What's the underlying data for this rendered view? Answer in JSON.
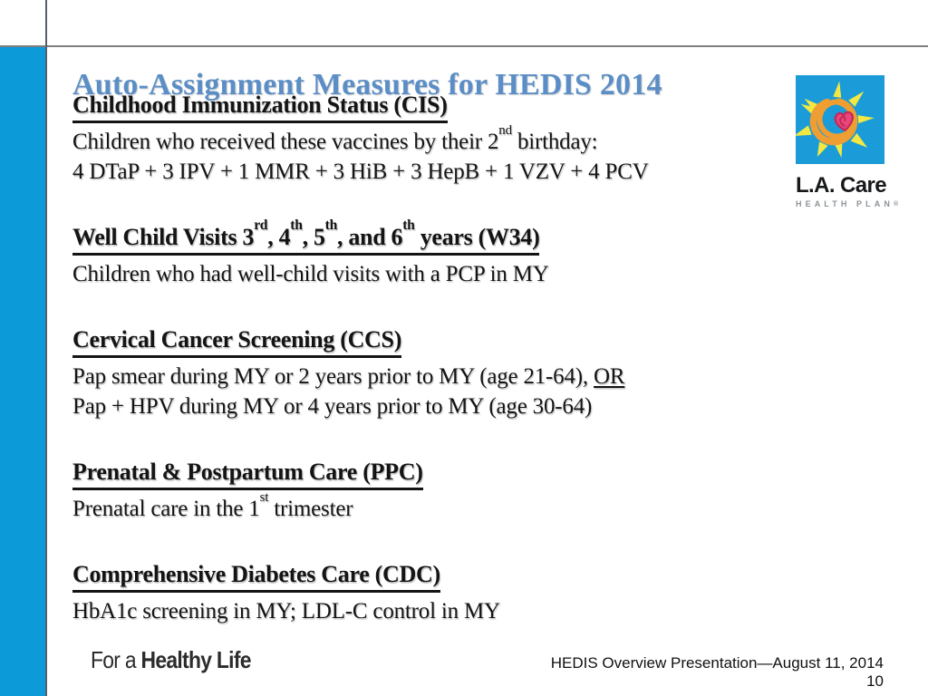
{
  "slide": {
    "title": "Auto-Assignment Measures for HEDIS 2014"
  },
  "colors": {
    "accent_bar": "#0d9ad9",
    "title_text": "#5b8ec6",
    "logo_square": "#1b9cd8",
    "logo_ring_orange": "#ef9e32",
    "logo_heart_pink": "#e8477a",
    "logo_ray_yellow": "#f3e842",
    "body_text": "#141414"
  },
  "sections": [
    {
      "id": "cis",
      "heading": [
        {
          "t": "Childhood Immunization Status (CIS)"
        }
      ],
      "lines": [
        [
          {
            "t": "Children who received these vaccines by their 2"
          },
          {
            "t": "nd",
            "sup": true
          },
          {
            "t": " birthday:"
          }
        ],
        [
          {
            "t": "4 DTaP + 3 IPV + 1 MMR + 3 HiB + 3 HepB + 1 VZV + 4 PCV"
          }
        ]
      ]
    },
    {
      "id": "w34",
      "heading": [
        {
          "t": "Well Child Visits 3"
        },
        {
          "t": "rd",
          "sup": true
        },
        {
          "t": ", 4"
        },
        {
          "t": "th",
          "sup": true
        },
        {
          "t": ", 5"
        },
        {
          "t": "th",
          "sup": true
        },
        {
          "t": ", and 6"
        },
        {
          "t": "th",
          "sup": true
        },
        {
          "t": " years (W34)"
        }
      ],
      "lines": [
        [
          {
            "t": "Children who had well-child visits with a PCP in MY"
          }
        ]
      ]
    },
    {
      "id": "ccs",
      "heading": [
        {
          "t": "Cervical Cancer Screening (CCS)"
        }
      ],
      "lines": [
        [
          {
            "t": "Pap smear during MY or 2 years prior to MY (age 21-64), "
          },
          {
            "t": "OR",
            "u": true
          }
        ],
        [
          {
            "t": "Pap + HPV during MY or 4 years prior to MY (age 30-64)"
          }
        ]
      ]
    },
    {
      "id": "ppc",
      "heading": [
        {
          "t": "Prenatal & Postpartum Care (PPC)"
        }
      ],
      "lines": [
        [
          {
            "t": "Prenatal care in the 1"
          },
          {
            "t": "st",
            "sup": true
          },
          {
            "t": " trimester"
          }
        ]
      ]
    },
    {
      "id": "cdc",
      "heading": [
        {
          "t": "Comprehensive Diabetes Care (CDC)"
        }
      ],
      "lines": [
        [
          {
            "t": "HbA1c screening in MY; LDL-C control in MY"
          }
        ]
      ]
    }
  ],
  "logo": {
    "icon": "sun-heart-icon",
    "wordmark": "L.A. Care",
    "subtext": "HEALTH PLAN",
    "registered": "®"
  },
  "tagline": {
    "prefix": "For a ",
    "emphasis": "Healthy Life"
  },
  "footer": {
    "note": "HEDIS Overview Presentation—August 11, 2014",
    "page_number": "10"
  }
}
